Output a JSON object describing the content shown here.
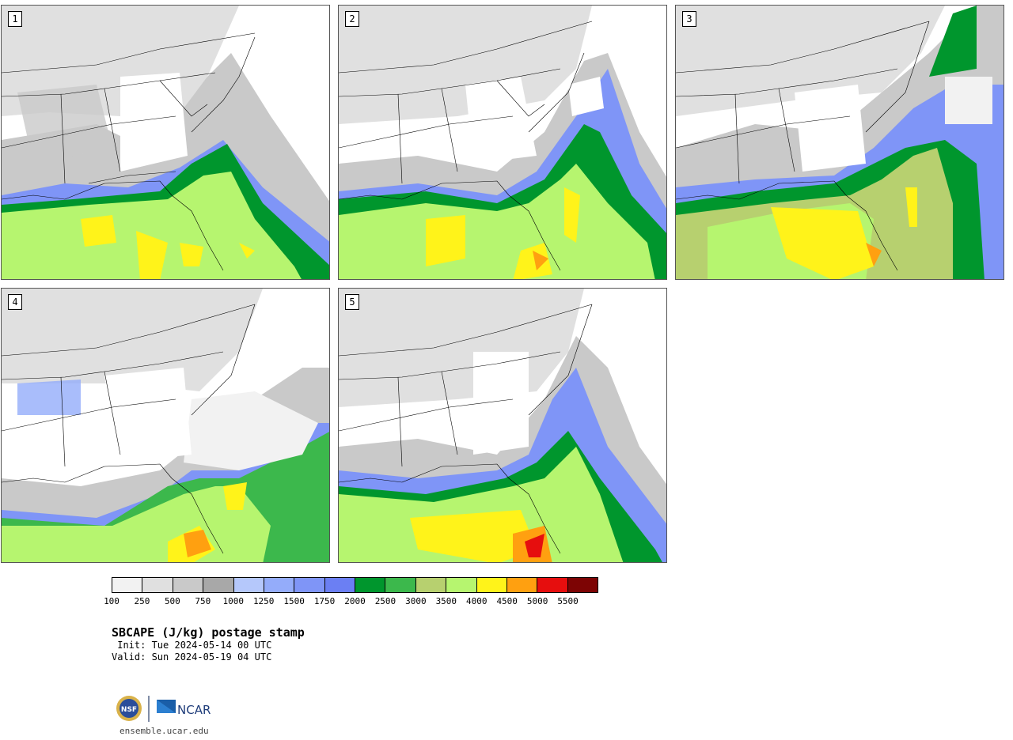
{
  "panels": [
    {
      "label": "1"
    },
    {
      "label": "2"
    },
    {
      "label": "3"
    },
    {
      "label": "4"
    },
    {
      "label": "5"
    }
  ],
  "colorbar": {
    "ticks": [
      "100",
      "250",
      "500",
      "750",
      "1000",
      "1250",
      "1500",
      "1750",
      "2000",
      "2500",
      "3000",
      "3500",
      "4000",
      "4500",
      "5000",
      "5500"
    ],
    "colors": [
      "#f2f2f2",
      "#e0e0e0",
      "#c9c9c9",
      "#a8a8a8",
      "#b5c8fb",
      "#94acfa",
      "#7f95f7",
      "#6b7ff3",
      "#00962d",
      "#3cb84c",
      "#b7d06f",
      "#b6f56f",
      "#fff31a",
      "#ffa010",
      "#e60e0e",
      "#7d0404"
    ]
  },
  "title": "SBCAPE (J/kg) postage stamp",
  "init": " Init: Tue 2024-05-14 00 UTC",
  "valid": "Valid: Sun 2024-05-19 04 UTC",
  "logo": {
    "left": "NSF",
    "right": "NCAR"
  },
  "site": "ensemble.ucar.edu"
}
